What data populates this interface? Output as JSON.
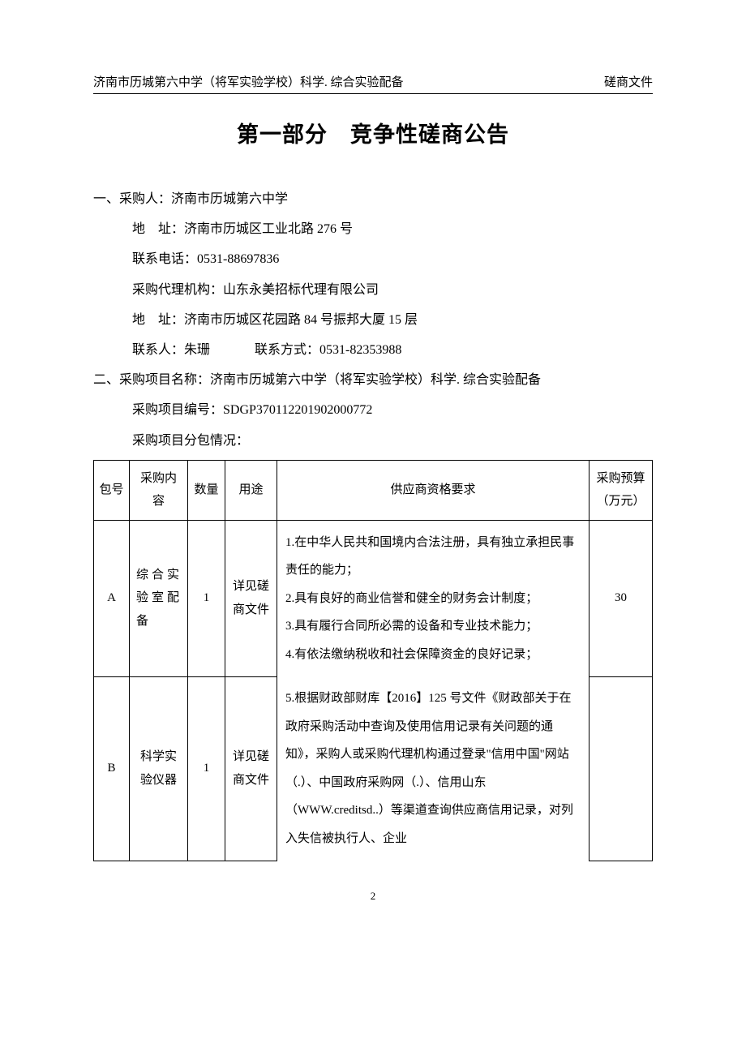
{
  "header": {
    "left": "济南市历城第六中学（将军实验学校）科学. 综合实验配备",
    "right": "磋商文件"
  },
  "title": "第一部分　竞争性磋商公告",
  "section1": {
    "heading": "一、采购人：济南市历城第六中学",
    "address_label": "地　址：",
    "address": "济南市历城区工业北路 276 号",
    "phone_label": "联系电话：",
    "phone": "0531-88697836",
    "agency_label": "采购代理机构：",
    "agency": "山东永美招标代理有限公司",
    "agency_address_label": "地　址：",
    "agency_address": "济南市历城区花园路 84 号振邦大厦 15 层",
    "contact_label": "联系人：",
    "contact": "朱珊",
    "contact_method_label": "联系方式：",
    "contact_method": "0531-82353988"
  },
  "section2": {
    "heading": "二、采购项目名称：济南市历城第六中学（将军实验学校）科学. 综合实验配备",
    "project_no_label": "采购项目编号：",
    "project_no": "SDGP370112201902000772",
    "package_info": "采购项目分包情况："
  },
  "table": {
    "headers": {
      "pkg": "包号",
      "content": "采购内容",
      "qty": "数量",
      "use": "用途",
      "req": "供应商资格要求",
      "budget": "采购预算（万元）"
    },
    "rowA": {
      "pkg": "A",
      "content": "综合实验室配备",
      "qty": "1",
      "use": "详见磋商文件",
      "req": "1.在中华人民共和国境内合法注册，具有独立承担民事责任的能力；\n2.具有良好的商业信誉和健全的财务会计制度；\n3.具有履行合同所必需的设备和专业技术能力；\n4.有依法缴纳税收和社会保障资金的良好记录；",
      "budget": "30"
    },
    "rowB": {
      "pkg": "B",
      "content": "科学实验仪器",
      "qty": "1",
      "use": "详见磋商文件",
      "req": "5.根据财政部财库【2016】125 号文件《财政部关于在政府采购活动中查询及使用信用记录有关问题的通知》，采购人或采购代理机构通过登录\"信用中国\"网站（.）、中国政府采购网（.）、信用山东（WWW.creditsd..）等渠道查询供应商信用记录，对列入失信被执行人、企业",
      "budget": ""
    }
  },
  "page_num": "2"
}
